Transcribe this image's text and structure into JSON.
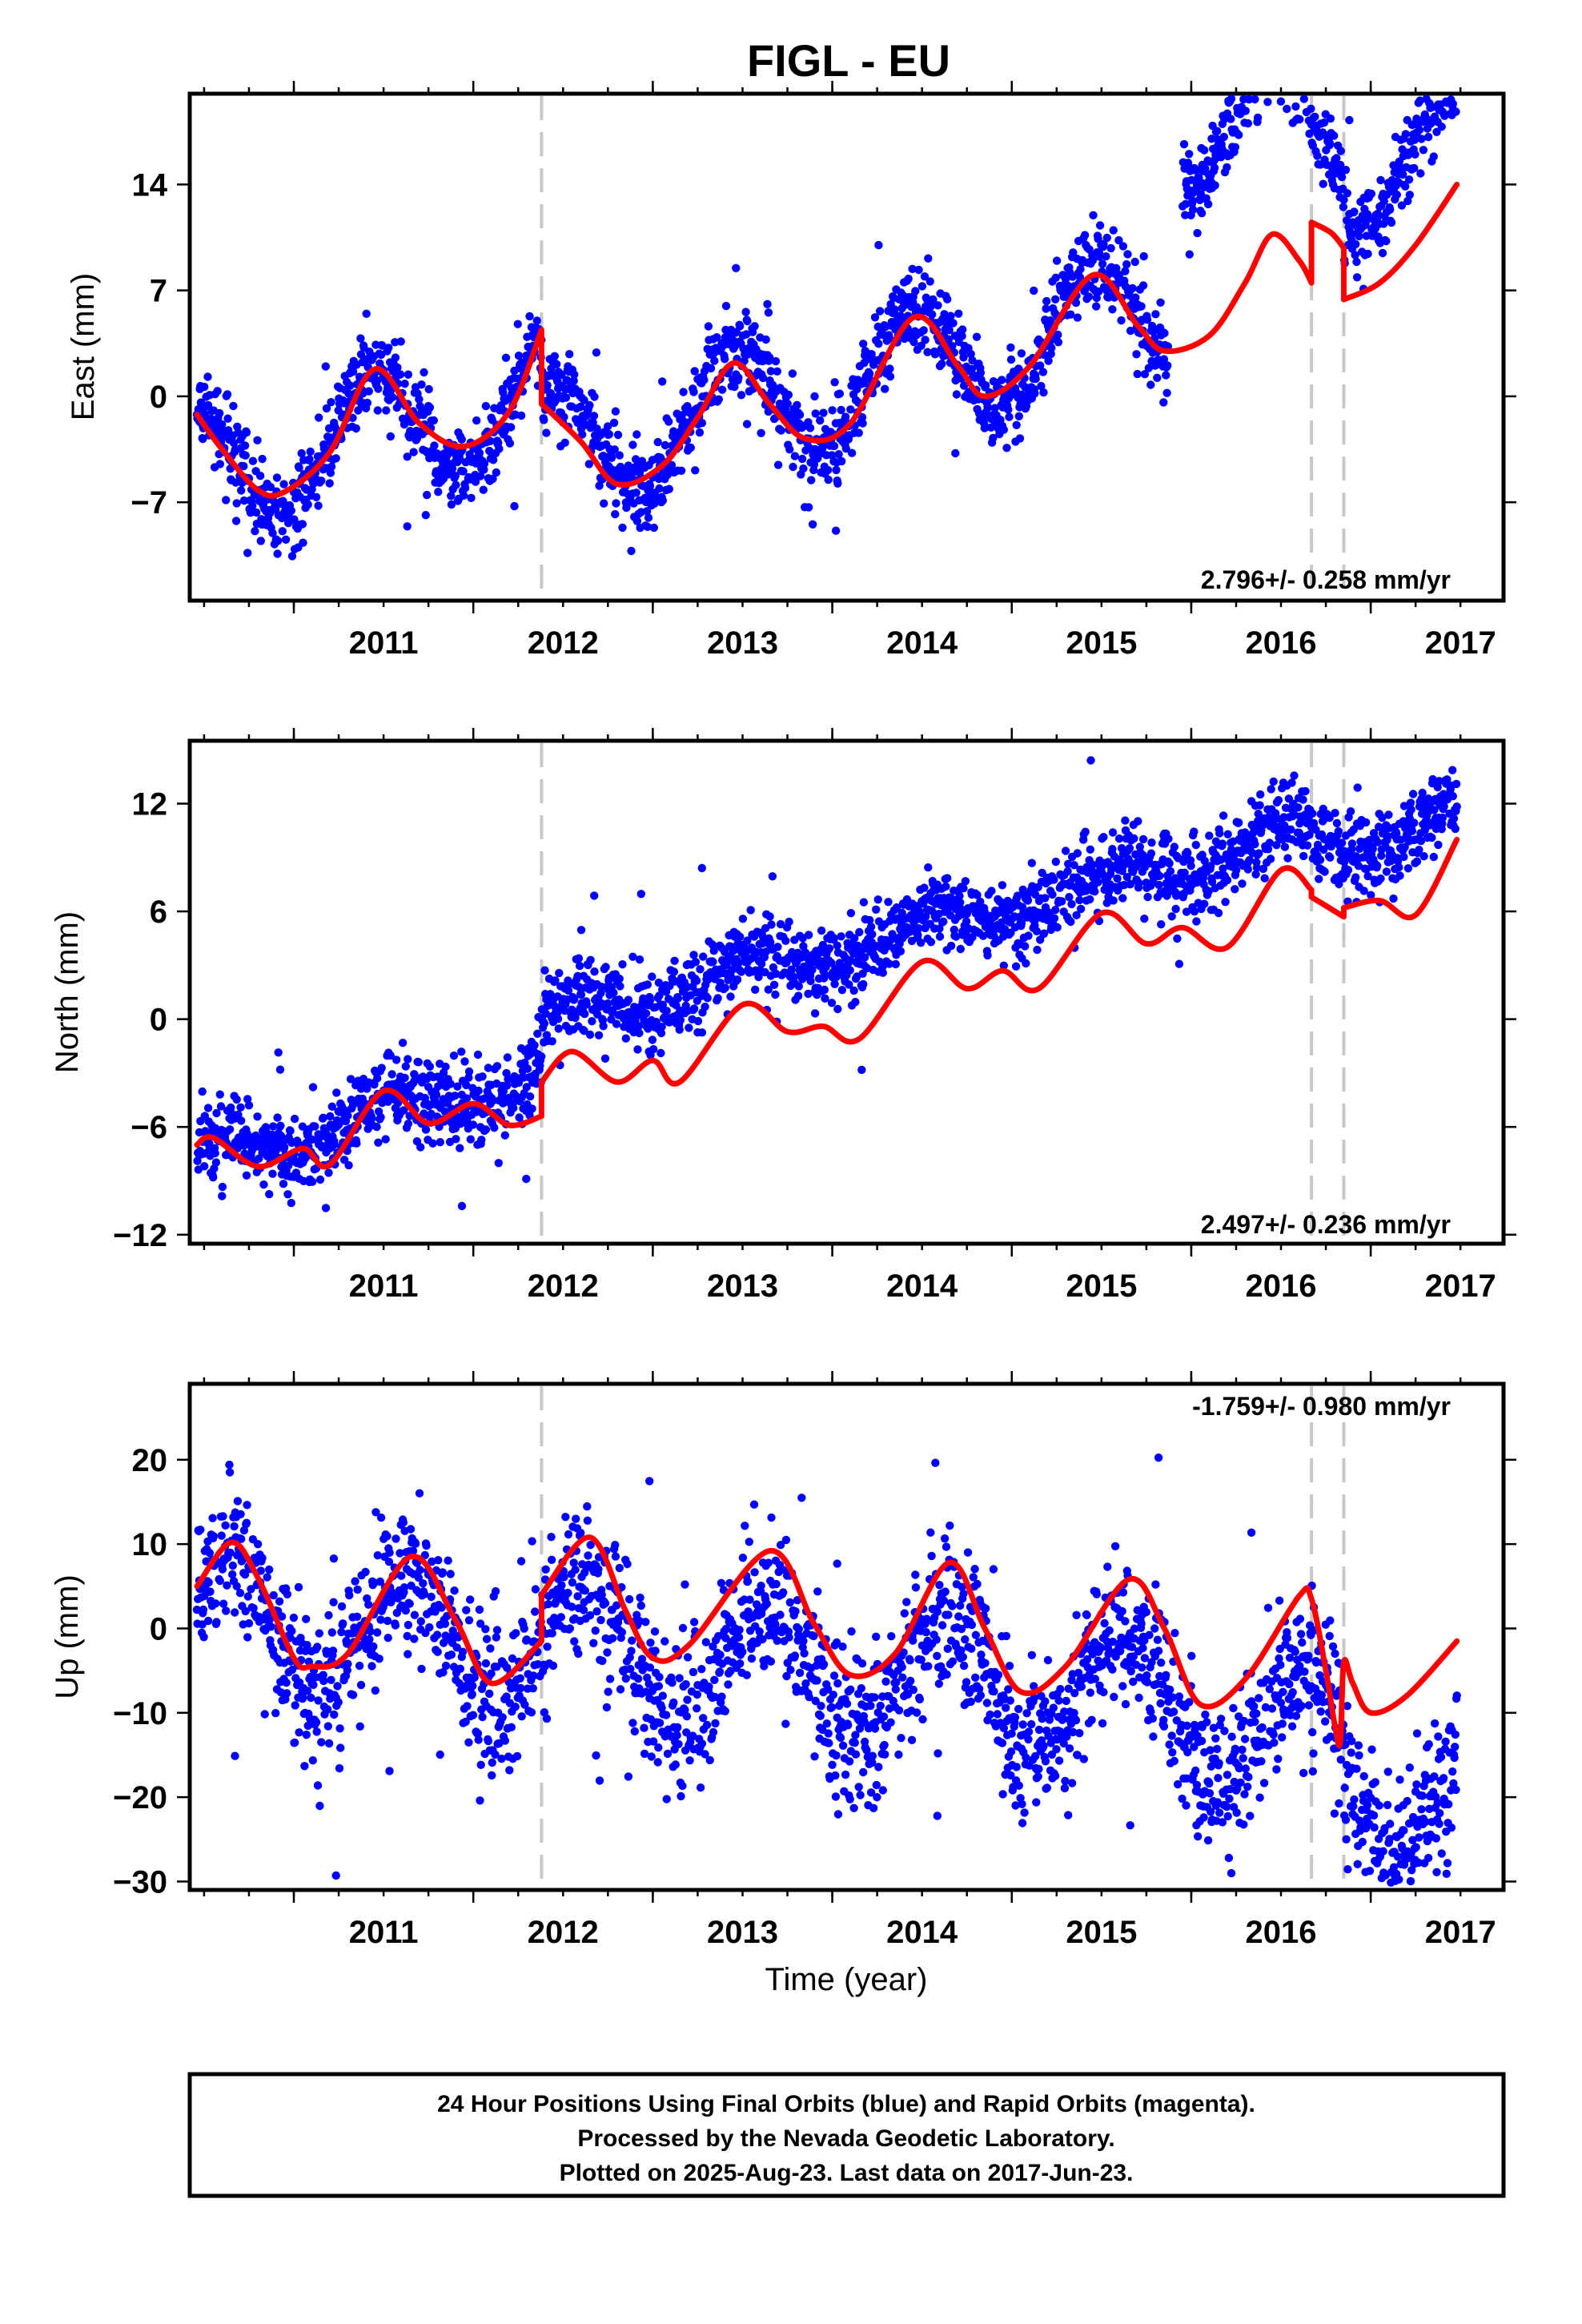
{
  "figure": {
    "title": "FIGL - EU",
    "xlabel": "Time (year)",
    "notes": [
      "24 Hour Positions Using Final Orbits (blue) and Rapid Orbits (magenta).",
      "Processed by the Nevada Geodetic Laboratory.",
      "Plotted on 2025-Aug-23. Last data on 2017-Jun-23."
    ]
  },
  "colors": {
    "points": "#0000ff",
    "fit": "#ff0000",
    "events": "#c8c8c8"
  },
  "chart_data": [
    {
      "type": "scatter",
      "component": "east",
      "ylabel": "East (mm)",
      "rate_label": "2.796+/- 0.258 mm/yr",
      "rate_location": "bottom-right",
      "xlim": [
        2010.42,
        2017.74
      ],
      "ylim": [
        -13.5,
        20.0
      ],
      "x_ticks": [
        2011,
        2012,
        2013,
        2014,
        2015,
        2016,
        2017
      ],
      "y_ticks": [
        -7,
        0,
        7,
        14
      ],
      "event_lines": [
        2012.38,
        2016.67,
        2016.85
      ],
      "points_model": {
        "x_start": 2010.46,
        "x_end": 2017.48,
        "gaps": [
          [
            2015.87,
            2015.95
          ]
        ],
        "rate": 2.796,
        "annual_amplitude": 4.0,
        "annual_peak": 2010.45,
        "offsets": [
          [
            2012.38,
            -4.0
          ],
          [
            2015.9,
            10.5
          ],
          [
            2016.67,
            -1.0
          ],
          [
            2016.85,
            -3.5
          ]
        ],
        "noise_sd": 1.4,
        "outlier_count": 18
      },
      "fit_curve": {
        "x": [
          2010.46,
          2010.6,
          2010.8,
          2010.95,
          2011.2,
          2011.45,
          2011.7,
          2011.95,
          2012.2,
          2012.38,
          2012.38,
          2012.6,
          2012.8,
          2013.05,
          2013.25,
          2013.45,
          2013.65,
          2013.85,
          2014.1,
          2014.45,
          2014.7,
          2014.85,
          2015.1,
          2015.45,
          2015.7,
          2015.85,
          2016.1,
          2016.3,
          2016.45,
          2016.6,
          2016.67,
          2016.67,
          2016.78,
          2016.85,
          2016.85,
          2017.05,
          2017.25,
          2017.48
        ],
        "y": [
          -1.2,
          -3.5,
          -6.2,
          -6.3,
          -3.7,
          1.8,
          -1.8,
          -3.3,
          -1.0,
          4.4,
          -0.5,
          -3.0,
          -5.8,
          -4.6,
          -1.4,
          2.2,
          -0.5,
          -2.8,
          -1.8,
          5.2,
          2.0,
          0.0,
          2.0,
          8.0,
          4.7,
          3.0,
          4.0,
          7.5,
          10.7,
          9.0,
          7.5,
          11.5,
          10.8,
          9.8,
          6.4,
          7.5,
          10.0,
          14.0
        ]
      }
    },
    {
      "type": "scatter",
      "component": "north",
      "ylabel": "North (mm)",
      "rate_label": "2.497+/- 0.236 mm/yr",
      "rate_location": "bottom-right",
      "xlim": [
        2010.42,
        2017.74
      ],
      "ylim": [
        -12.5,
        15.5
      ],
      "x_ticks": [
        2011,
        2012,
        2013,
        2014,
        2015,
        2016,
        2017
      ],
      "y_ticks": [
        -12,
        -6,
        0,
        6,
        12
      ],
      "event_lines": [
        2012.38,
        2016.67,
        2016.85
      ],
      "points_model": {
        "x_start": 2010.46,
        "x_end": 2017.48,
        "gaps": [],
        "rate": 2.497,
        "annual_amplitude": 1.0,
        "annual_peak": 2010.55,
        "offsets": [
          [
            2012.38,
            2.8
          ],
          [
            2016.67,
            -1.2
          ]
        ],
        "noise_sd": 1.1,
        "outlier_count": 14
      },
      "fit_curve": {
        "x": [
          2010.46,
          2010.55,
          2010.8,
          2011.05,
          2011.2,
          2011.5,
          2011.75,
          2012.0,
          2012.2,
          2012.38,
          2012.38,
          2012.55,
          2012.8,
          2013.0,
          2013.15,
          2013.5,
          2013.75,
          2013.95,
          2014.15,
          2014.5,
          2014.75,
          2014.95,
          2015.15,
          2015.5,
          2015.75,
          2015.95,
          2016.2,
          2016.5,
          2016.67,
          2016.67,
          2016.85,
          2016.85,
          2017.05,
          2017.25,
          2017.48
        ],
        "y": [
          -7.0,
          -6.6,
          -8.2,
          -7.2,
          -8.1,
          -4.0,
          -5.8,
          -4.7,
          -5.9,
          -5.4,
          -3.5,
          -1.8,
          -3.5,
          -2.3,
          -3.5,
          0.8,
          -0.7,
          -0.4,
          -1.1,
          3.2,
          1.7,
          2.7,
          1.7,
          5.9,
          4.2,
          5.1,
          4.0,
          8.3,
          7.2,
          6.8,
          5.7,
          6.2,
          6.6,
          5.8,
          10.0
        ]
      }
    },
    {
      "type": "scatter",
      "component": "up",
      "ylabel": "Up (mm)",
      "rate_label": "-1.759+/- 0.980 mm/yr",
      "rate_location": "top-right",
      "xlim": [
        2010.42,
        2017.74
      ],
      "ylim": [
        -31.0,
        29.0
      ],
      "x_ticks": [
        2011,
        2012,
        2013,
        2014,
        2015,
        2016,
        2017
      ],
      "y_ticks": [
        -30,
        -20,
        -10,
        0,
        10,
        20
      ],
      "event_lines": [
        2012.38,
        2016.67,
        2016.85
      ],
      "points_model": {
        "x_start": 2010.46,
        "x_end": 2017.48,
        "gaps": [],
        "rate": -1.759,
        "annual_amplitude": 7.5,
        "annual_peak": 2010.63,
        "offsets": [
          [
            2016.0,
            -3.0
          ],
          [
            2016.85,
            -6.0
          ]
        ],
        "noise_sd": 4.5,
        "outlier_count": 20
      },
      "fit_curve": {
        "x": [
          2010.46,
          2010.65,
          2010.8,
          2011.0,
          2011.1,
          2011.3,
          2011.65,
          2011.9,
          2012.1,
          2012.38,
          2012.38,
          2012.65,
          2012.85,
          2013.0,
          2013.2,
          2013.65,
          2013.9,
          2014.1,
          2014.35,
          2014.65,
          2014.85,
          2015.05,
          2015.3,
          2015.65,
          2015.85,
          2016.05,
          2016.3,
          2016.6,
          2016.67,
          2016.75,
          2016.8,
          2016.83,
          2016.85,
          2016.9,
          2017.0,
          2017.2,
          2017.48
        ],
        "y": [
          5.0,
          10.2,
          6.0,
          -3.5,
          -4.5,
          -3.0,
          8.5,
          1.0,
          -6.5,
          -1.5,
          4.0,
          10.8,
          2.0,
          -3.5,
          -2.0,
          9.2,
          0.5,
          -5.5,
          -3.0,
          7.8,
          0.0,
          -7.5,
          -4.5,
          5.8,
          0.0,
          -9.0,
          -6.0,
          3.8,
          3.5,
          -5.0,
          -11.5,
          -13.5,
          -4.0,
          -6.5,
          -10.0,
          -8.0,
          -1.5
        ]
      }
    }
  ]
}
